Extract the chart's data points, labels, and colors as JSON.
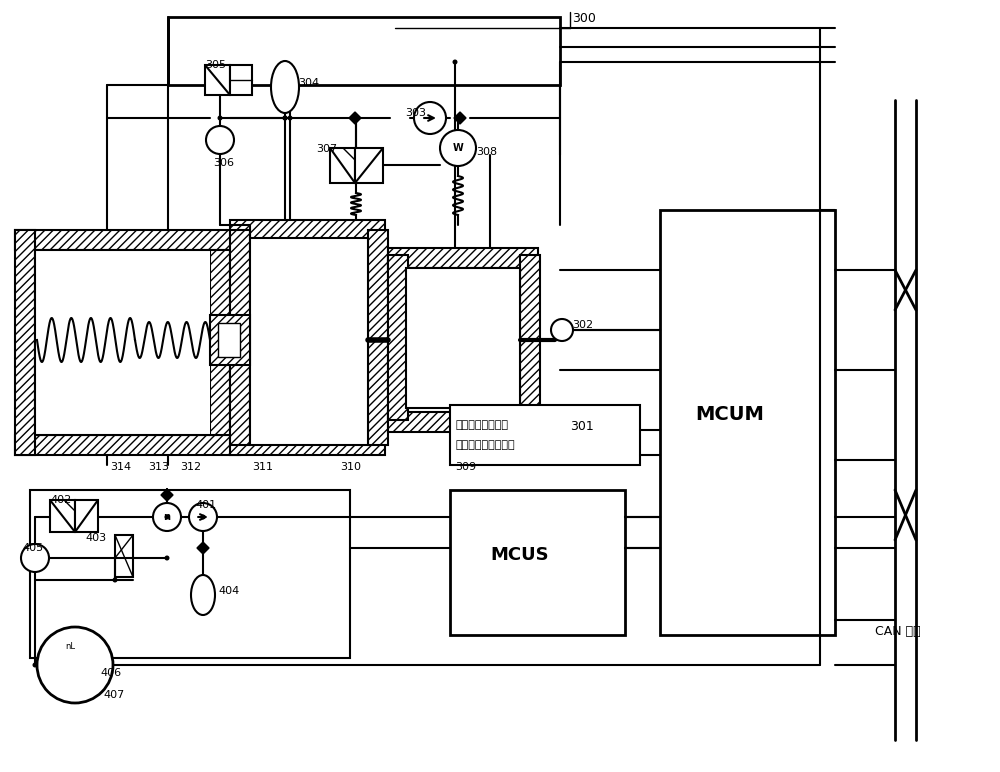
{
  "bg_color": "#ffffff",
  "black": "#000000",
  "figure_width": 10.0,
  "figure_height": 7.72,
  "dpi": 100,
  "sensor_line1": "横摇角速度传感器",
  "sensor_line2": "纵横向加速度传感器",
  "MCUM": "MCUM",
  "MCUS": "MCUS",
  "CAN": "CAN 总线"
}
